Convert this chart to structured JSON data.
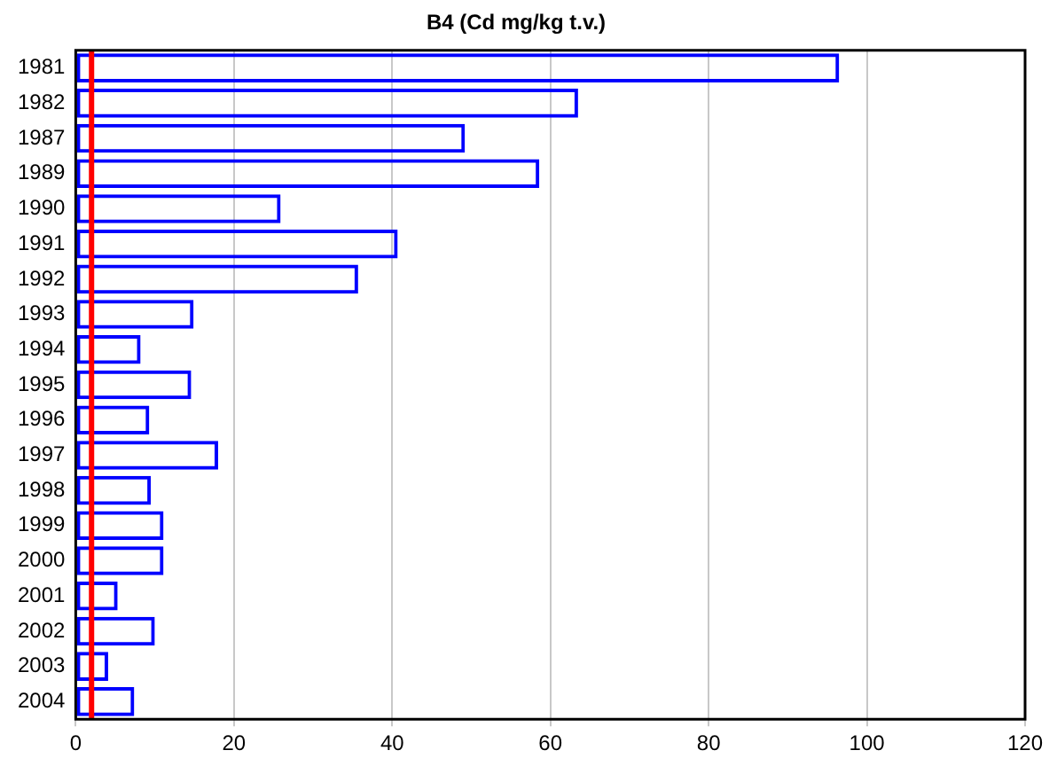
{
  "chart_data": {
    "type": "bar",
    "orientation": "horizontal",
    "title": "B4 (Cd mg/kg t.v.)",
    "categories": [
      "1981",
      "1982",
      "1987",
      "1989",
      "1990",
      "1991",
      "1992",
      "1993",
      "1994",
      "1995",
      "1996",
      "1997",
      "1998",
      "1999",
      "2000",
      "2001",
      "2002",
      "2003",
      "2004"
    ],
    "values": [
      96.5,
      63.5,
      49.2,
      58.6,
      25.9,
      40.7,
      35.7,
      14.9,
      8.2,
      14.6,
      9.3,
      18.0,
      9.5,
      11.1,
      11.1,
      5.3,
      10.0,
      4.1,
      7.4
    ],
    "color": "#0000ff",
    "xlim": [
      0,
      120
    ],
    "xticks": [
      0,
      20,
      40,
      60,
      80,
      100,
      120
    ],
    "ref_lines": [
      {
        "axis": "x",
        "value": 2,
        "color": "#ff0000"
      }
    ],
    "grid": "x",
    "legend": false
  }
}
